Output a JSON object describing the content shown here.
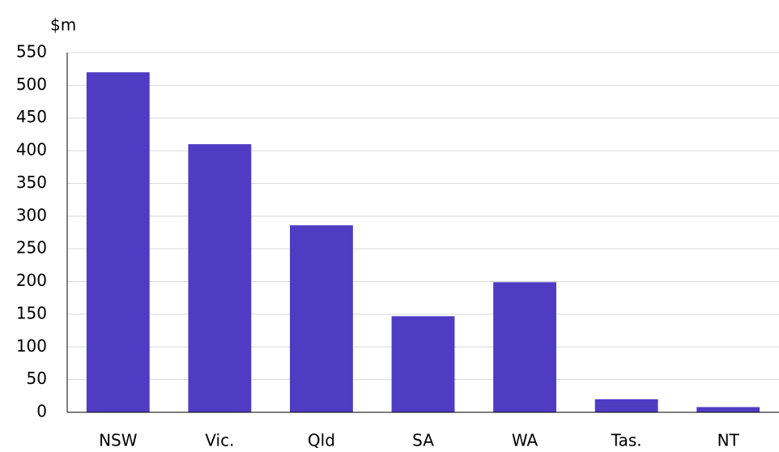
{
  "chart_data": {
    "type": "bar",
    "y_axis_label": "$m",
    "categories": [
      "NSW",
      "Vic.",
      "Qld",
      "SA",
      "WA",
      "Tas.",
      "NT"
    ],
    "values": [
      520,
      410,
      286,
      147,
      199,
      20,
      8
    ],
    "color": "#503cc3",
    "ylim": [
      0,
      550
    ],
    "yticks": [
      0,
      50,
      100,
      150,
      200,
      250,
      300,
      350,
      400,
      450,
      500,
      550
    ],
    "grid": true
  }
}
